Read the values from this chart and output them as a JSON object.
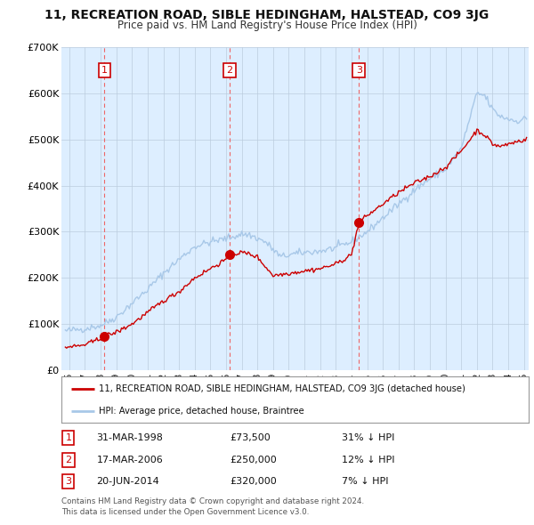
{
  "title": "11, RECREATION ROAD, SIBLE HEDINGHAM, HALSTEAD, CO9 3JG",
  "subtitle": "Price paid vs. HM Land Registry's House Price Index (HPI)",
  "ylim": [
    0,
    700000
  ],
  "yticks": [
    0,
    100000,
    200000,
    300000,
    400000,
    500000,
    600000,
    700000
  ],
  "ytick_labels": [
    "£0",
    "£100K",
    "£200K",
    "£300K",
    "£400K",
    "£500K",
    "£600K",
    "£700K"
  ],
  "hpi_color": "#a8c8e8",
  "price_color": "#cc0000",
  "vline_color": "#ee6666",
  "chart_bg_color": "#ddeeff",
  "background_color": "#ffffff",
  "grid_color": "#bbccdd",
  "sales": [
    {
      "date_num": 1998.25,
      "price": 73500,
      "label": "1"
    },
    {
      "date_num": 2006.21,
      "price": 250000,
      "label": "2"
    },
    {
      "date_num": 2014.47,
      "price": 320000,
      "label": "3"
    }
  ],
  "legend_property_label": "11, RECREATION ROAD, SIBLE HEDINGHAM, HALSTEAD, CO9 3JG (detached house)",
  "legend_hpi_label": "HPI: Average price, detached house, Braintree",
  "table_rows": [
    {
      "num": "1",
      "date": "31-MAR-1998",
      "price": "£73,500",
      "pct": "31% ↓ HPI"
    },
    {
      "num": "2",
      "date": "17-MAR-2006",
      "price": "£250,000",
      "pct": "12% ↓ HPI"
    },
    {
      "num": "3",
      "date": "20-JUN-2014",
      "price": "£320,000",
      "pct": "7% ↓ HPI"
    }
  ],
  "footnote": "Contains HM Land Registry data © Crown copyright and database right 2024.\nThis data is licensed under the Open Government Licence v3.0."
}
